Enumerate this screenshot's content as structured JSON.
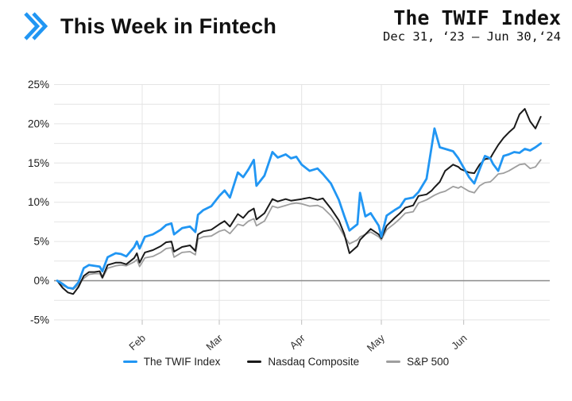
{
  "header": {
    "brand_title": "This Week in Fintech",
    "logo_icon": "double-chevron-right-icon",
    "logo_color": "#2196F3",
    "chart_title": "The TWIF Index",
    "chart_subtitle": "Dec 31, ‘23 – Jun 30,‘24"
  },
  "chart_data": {
    "type": "line",
    "title": "The TWIF Index",
    "subtitle": "Dec 31, ‘23 – Jun 30,‘24",
    "x_unit": "days since Dec 31 2023",
    "xlim": [
      0,
      183
    ],
    "ylim": [
      -5,
      25
    ],
    "grid": true,
    "grid_step_pct": 2.5,
    "grid_color": "#e4e4e4",
    "zero_line_color": "#8a8a8a",
    "legend_position": "bottom",
    "y_ticks": [
      {
        "v": 25,
        "label": "25%"
      },
      {
        "v": 20,
        "label": "20%"
      },
      {
        "v": 15,
        "label": "15%"
      },
      {
        "v": 10,
        "label": "10%"
      },
      {
        "v": 5,
        "label": "5%"
      },
      {
        "v": 0,
        "label": "0%"
      },
      {
        "v": -5,
        "label": "-5%"
      }
    ],
    "x_ticks": [
      {
        "day": 32,
        "label": "Feb"
      },
      {
        "day": 61,
        "label": "Mar"
      },
      {
        "day": 92,
        "label": "Apr"
      },
      {
        "day": 122,
        "label": "May"
      },
      {
        "day": 153,
        "label": "Jun"
      }
    ],
    "x_days": [
      0,
      2,
      4,
      6,
      8,
      10,
      12,
      14,
      16,
      17,
      19,
      22,
      24,
      26,
      29,
      30,
      31,
      33,
      36,
      39,
      41,
      43,
      44,
      47,
      50,
      52,
      53,
      55,
      58,
      61,
      63,
      65,
      68,
      70,
      72,
      74,
      75,
      78,
      81,
      83,
      86,
      88,
      90,
      92,
      95,
      98,
      100,
      103,
      106,
      108,
      110,
      113,
      114,
      116,
      118,
      121,
      122,
      124,
      127,
      129,
      131,
      134,
      136,
      139,
      141,
      142,
      144,
      146,
      149,
      151,
      152,
      155,
      157,
      159,
      161,
      163,
      164,
      166,
      168,
      170,
      172,
      174,
      176,
      178,
      180,
      182
    ],
    "series": [
      {
        "name": "The TWIF Index",
        "color": "#2196F3",
        "width": 2.8,
        "values": [
          0,
          -0.4,
          -0.9,
          -1.0,
          -0.2,
          1.6,
          2.0,
          1.9,
          1.8,
          1.2,
          3.0,
          3.5,
          3.4,
          3.1,
          4.3,
          5.0,
          4.1,
          5.6,
          5.9,
          6.5,
          7.1,
          7.3,
          5.9,
          6.7,
          6.9,
          6.2,
          8.4,
          9.0,
          9.5,
          10.8,
          11.5,
          10.6,
          13.8,
          13.2,
          14.2,
          15.4,
          12.1,
          13.4,
          16.4,
          15.7,
          16.1,
          15.6,
          15.8,
          14.8,
          14.0,
          14.3,
          13.6,
          12.4,
          10.3,
          8.3,
          6.4,
          7.2,
          11.2,
          8.2,
          8.6,
          7.0,
          5.6,
          8.3,
          9.0,
          9.4,
          10.4,
          10.6,
          11.3,
          13.0,
          17.2,
          19.4,
          17.0,
          16.8,
          16.5,
          15.6,
          15.0,
          13.2,
          12.4,
          14.2,
          15.9,
          15.6,
          14.9,
          14.0,
          15.9,
          16.1,
          16.4,
          16.3,
          16.8,
          16.6,
          17.0,
          17.5
        ]
      },
      {
        "name": "Nasdaq Composite",
        "color": "#1a1a1a",
        "width": 2.0,
        "values": [
          0,
          -0.9,
          -1.5,
          -1.7,
          -0.8,
          0.6,
          1.1,
          1.1,
          1.2,
          0.4,
          2.0,
          2.3,
          2.3,
          2.1,
          2.9,
          3.5,
          2.3,
          3.6,
          3.9,
          4.4,
          4.9,
          5.0,
          3.7,
          4.3,
          4.5,
          3.8,
          5.9,
          6.3,
          6.5,
          7.2,
          7.6,
          6.9,
          8.5,
          8.0,
          8.8,
          9.2,
          7.8,
          8.6,
          10.4,
          10.1,
          10.4,
          10.2,
          10.3,
          10.4,
          10.6,
          10.3,
          10.5,
          9.2,
          7.7,
          6.0,
          3.5,
          4.4,
          5.2,
          5.9,
          6.6,
          5.9,
          5.4,
          7.0,
          8.0,
          8.6,
          9.3,
          9.6,
          10.8,
          11.0,
          11.5,
          11.9,
          12.6,
          14.0,
          14.8,
          14.5,
          14.2,
          13.8,
          13.7,
          14.8,
          15.5,
          15.6,
          16.2,
          17.3,
          18.2,
          18.9,
          19.5,
          21.2,
          21.9,
          20.3,
          19.4,
          20.9
        ]
      },
      {
        "name": "S&P 500",
        "color": "#9e9e9e",
        "width": 1.8,
        "values": [
          0,
          -0.6,
          -0.9,
          -1.1,
          -0.5,
          0.3,
          0.8,
          0.9,
          0.9,
          0.3,
          1.6,
          1.9,
          2.0,
          1.9,
          2.4,
          2.7,
          1.8,
          2.9,
          3.1,
          3.6,
          4.1,
          4.2,
          3.0,
          3.6,
          3.7,
          3.3,
          5.3,
          5.6,
          5.7,
          6.3,
          6.5,
          6.0,
          7.2,
          7.0,
          7.6,
          7.9,
          7.0,
          7.6,
          9.5,
          9.3,
          9.6,
          9.8,
          9.9,
          9.8,
          9.5,
          9.6,
          9.3,
          8.3,
          6.9,
          5.7,
          4.7,
          5.2,
          5.6,
          5.9,
          6.2,
          5.6,
          5.2,
          6.5,
          7.3,
          7.9,
          8.6,
          8.8,
          9.9,
          10.3,
          10.7,
          10.9,
          11.2,
          11.4,
          12.0,
          11.8,
          12.0,
          11.4,
          11.2,
          12.1,
          12.5,
          12.6,
          12.9,
          13.6,
          13.7,
          14.0,
          14.4,
          14.8,
          14.9,
          14.3,
          14.5,
          15.4
        ]
      }
    ]
  }
}
